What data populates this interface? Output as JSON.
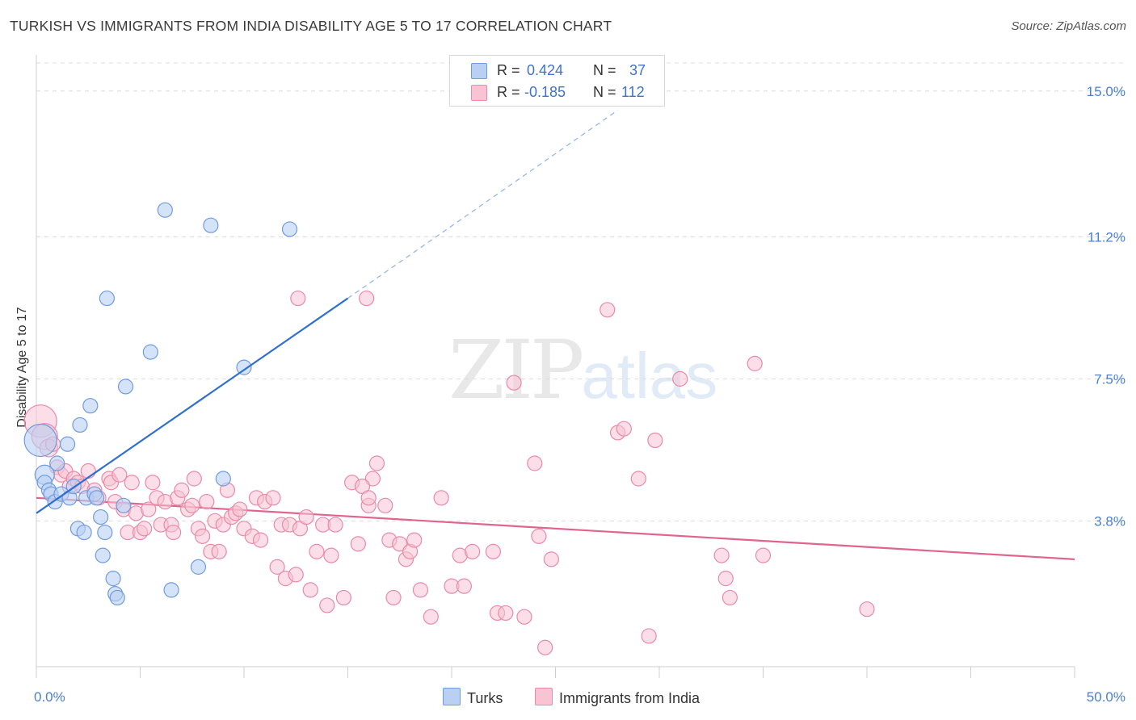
{
  "title": "TURKISH VS IMMIGRANTS FROM INDIA DISABILITY AGE 5 TO 17 CORRELATION CHART",
  "source": "Source: ZipAtlas.com",
  "watermark": {
    "zip": "ZIP",
    "atlas": "atlas"
  },
  "legend": {
    "turks": {
      "r_label": "R =",
      "r_value": "0.424",
      "n_label": "N =",
      "n_value": "37"
    },
    "india": {
      "r_label": "R =",
      "r_value": "-0.185",
      "n_label": "N =",
      "n_value": "112"
    }
  },
  "bottom_legend": {
    "turks": "Turks",
    "india": "Immigrants from India"
  },
  "colors": {
    "turks_fill": "#b9d0f3",
    "turks_stroke": "#6f9be0",
    "turks_line": "#2f6fcf",
    "india_fill": "#f8c3d3",
    "india_stroke": "#e98aa8",
    "india_line": "#e0648e",
    "tick": "#4a7fd0",
    "grid": "#dcdcdc"
  },
  "chart_data": {
    "type": "scatter",
    "title": "TURKISH VS IMMIGRANTS FROM INDIA DISABILITY AGE 5 TO 17 CORRELATION CHART",
    "xlabel": "",
    "ylabel": "Disability Age 5 to 17",
    "xlim": [
      0,
      50
    ],
    "ylim": [
      0,
      15.9
    ],
    "x_tick_labels": [
      "0.0%",
      "50.0%"
    ],
    "y_ticks": [
      {
        "value": 3.8,
        "label": "3.8%"
      },
      {
        "value": 7.5,
        "label": "7.5%"
      },
      {
        "value": 11.2,
        "label": "11.2%"
      },
      {
        "value": 15.0,
        "label": "15.0%"
      }
    ],
    "series": [
      {
        "name": "Turks",
        "r": 0.424,
        "n": 37,
        "trend": {
          "x0": 0,
          "y0": 4.0,
          "x1": 15,
          "y1": 9.6,
          "x_dash_end": 28,
          "y_dash_end": 14.5
        },
        "points": [
          [
            0.2,
            5.9,
            20
          ],
          [
            0.4,
            5.0,
            12
          ],
          [
            0.4,
            4.8,
            9
          ],
          [
            0.6,
            4.6,
            9
          ],
          [
            0.7,
            4.5,
            9
          ],
          [
            0.9,
            4.3,
            9
          ],
          [
            1.0,
            5.3,
            9
          ],
          [
            1.2,
            4.5,
            9
          ],
          [
            1.5,
            5.8,
            9
          ],
          [
            1.6,
            4.4,
            9
          ],
          [
            1.8,
            4.7,
            9
          ],
          [
            2.0,
            3.6,
            9
          ],
          [
            2.1,
            6.3,
            9
          ],
          [
            2.3,
            3.5,
            9
          ],
          [
            2.4,
            4.4,
            9
          ],
          [
            2.6,
            6.8,
            9
          ],
          [
            2.8,
            4.5,
            9
          ],
          [
            2.9,
            4.4,
            9
          ],
          [
            3.1,
            3.9,
            9
          ],
          [
            3.2,
            2.9,
            9
          ],
          [
            3.3,
            3.5,
            9
          ],
          [
            3.4,
            9.6,
            9
          ],
          [
            3.7,
            2.3,
            9
          ],
          [
            3.8,
            1.9,
            9
          ],
          [
            3.9,
            1.8,
            9
          ],
          [
            4.2,
            4.2,
            9
          ],
          [
            4.3,
            7.3,
            9
          ],
          [
            5.5,
            8.2,
            9
          ],
          [
            6.2,
            11.9,
            9
          ],
          [
            6.5,
            2.0,
            9
          ],
          [
            7.8,
            2.6,
            9
          ],
          [
            8.4,
            11.5,
            9
          ],
          [
            9.0,
            4.9,
            9
          ],
          [
            10.0,
            7.8,
            9
          ],
          [
            12.2,
            11.4,
            9
          ]
        ]
      },
      {
        "name": "Immigrants from India",
        "r": -0.185,
        "n": 112,
        "trend": {
          "x0": 0,
          "y0": 4.4,
          "x1": 50,
          "y1": 2.8
        },
        "points": [
          [
            0.2,
            6.4,
            20
          ],
          [
            0.4,
            6.0,
            16
          ],
          [
            0.6,
            5.7,
            11
          ],
          [
            0.8,
            5.8,
            9
          ],
          [
            1.0,
            5.2,
            9
          ],
          [
            1.2,
            5.0,
            9
          ],
          [
            1.4,
            5.1,
            9
          ],
          [
            1.6,
            4.7,
            9
          ],
          [
            1.8,
            4.9,
            9
          ],
          [
            2.0,
            4.8,
            9
          ],
          [
            2.2,
            4.7,
            9
          ],
          [
            2.5,
            5.1,
            9
          ],
          [
            2.8,
            4.6,
            9
          ],
          [
            3.0,
            4.4,
            9
          ],
          [
            3.5,
            4.9,
            9
          ],
          [
            3.6,
            4.8,
            9
          ],
          [
            3.8,
            4.3,
            9
          ],
          [
            4.0,
            5.0,
            9
          ],
          [
            4.2,
            4.1,
            9
          ],
          [
            4.4,
            3.5,
            9
          ],
          [
            4.6,
            4.8,
            9
          ],
          [
            4.8,
            4.0,
            9
          ],
          [
            5.0,
            3.5,
            9
          ],
          [
            5.2,
            3.6,
            9
          ],
          [
            5.4,
            4.1,
            9
          ],
          [
            5.6,
            4.8,
            9
          ],
          [
            5.8,
            4.4,
            9
          ],
          [
            6.0,
            3.7,
            9
          ],
          [
            6.2,
            4.3,
            9
          ],
          [
            6.5,
            3.7,
            9
          ],
          [
            6.6,
            3.5,
            9
          ],
          [
            6.8,
            4.4,
            9
          ],
          [
            7.0,
            4.6,
            9
          ],
          [
            7.3,
            4.1,
            9
          ],
          [
            7.5,
            4.2,
            9
          ],
          [
            7.6,
            4.9,
            9
          ],
          [
            7.8,
            3.6,
            9
          ],
          [
            8.0,
            3.4,
            9
          ],
          [
            8.2,
            4.3,
            9
          ],
          [
            8.4,
            3.0,
            9
          ],
          [
            8.6,
            3.8,
            9
          ],
          [
            8.8,
            3.0,
            9
          ],
          [
            9.0,
            3.7,
            9
          ],
          [
            9.2,
            4.6,
            9
          ],
          [
            9.4,
            3.9,
            9
          ],
          [
            9.6,
            4.0,
            9
          ],
          [
            9.8,
            4.1,
            9
          ],
          [
            10.0,
            3.6,
            9
          ],
          [
            10.4,
            3.4,
            9
          ],
          [
            10.6,
            4.4,
            9
          ],
          [
            10.8,
            3.3,
            9
          ],
          [
            11.0,
            4.3,
            9
          ],
          [
            11.4,
            4.4,
            9
          ],
          [
            11.6,
            2.6,
            9
          ],
          [
            11.8,
            3.7,
            9
          ],
          [
            12.0,
            2.3,
            9
          ],
          [
            12.2,
            3.7,
            9
          ],
          [
            12.5,
            2.4,
            9
          ],
          [
            12.7,
            3.6,
            9
          ],
          [
            13.0,
            3.9,
            9
          ],
          [
            13.2,
            2.0,
            9
          ],
          [
            13.5,
            3.0,
            9
          ],
          [
            13.8,
            3.7,
            9
          ],
          [
            14.0,
            1.6,
            9
          ],
          [
            14.2,
            2.9,
            9
          ],
          [
            14.4,
            3.7,
            9
          ],
          [
            14.8,
            1.8,
            9
          ],
          [
            15.2,
            4.8,
            9
          ],
          [
            15.5,
            3.2,
            9
          ],
          [
            16.0,
            4.2,
            9
          ],
          [
            16.2,
            4.9,
            9
          ],
          [
            16.4,
            5.3,
            9
          ],
          [
            16.8,
            4.2,
            9
          ],
          [
            17.0,
            3.3,
            9
          ],
          [
            17.2,
            1.8,
            9
          ],
          [
            17.5,
            3.2,
            9
          ],
          [
            17.8,
            2.8,
            9
          ],
          [
            18.0,
            3.0,
            9
          ],
          [
            18.2,
            3.3,
            9
          ],
          [
            18.5,
            2.0,
            9
          ],
          [
            19.0,
            1.3,
            9
          ],
          [
            19.5,
            4.4,
            9
          ],
          [
            20.0,
            2.1,
            9
          ],
          [
            20.4,
            2.9,
            9
          ],
          [
            20.6,
            2.1,
            9
          ],
          [
            21.0,
            3.0,
            9
          ],
          [
            22.0,
            3.0,
            9
          ],
          [
            22.2,
            1.4,
            9
          ],
          [
            22.6,
            1.4,
            9
          ],
          [
            23.5,
            1.3,
            9
          ],
          [
            24.0,
            5.3,
            9
          ],
          [
            24.2,
            3.4,
            9
          ],
          [
            24.5,
            0.5,
            9
          ],
          [
            24.8,
            2.8,
            9
          ],
          [
            27.5,
            9.3,
            9
          ],
          [
            28.0,
            6.1,
            9
          ],
          [
            28.3,
            6.2,
            9
          ],
          [
            29.0,
            4.9,
            9
          ],
          [
            29.5,
            0.8,
            9
          ],
          [
            29.8,
            5.9,
            9
          ],
          [
            31.0,
            7.5,
            9
          ],
          [
            33.0,
            2.9,
            9
          ],
          [
            33.2,
            2.3,
            9
          ],
          [
            33.4,
            1.8,
            9
          ],
          [
            34.6,
            7.9,
            9
          ],
          [
            35.0,
            2.9,
            9
          ],
          [
            40.0,
            1.5,
            9
          ],
          [
            12.6,
            9.6,
            9
          ],
          [
            15.9,
            9.6,
            9
          ],
          [
            23.0,
            7.4,
            9
          ],
          [
            15.7,
            4.7,
            9
          ],
          [
            16.0,
            4.4,
            9
          ]
        ]
      }
    ]
  }
}
